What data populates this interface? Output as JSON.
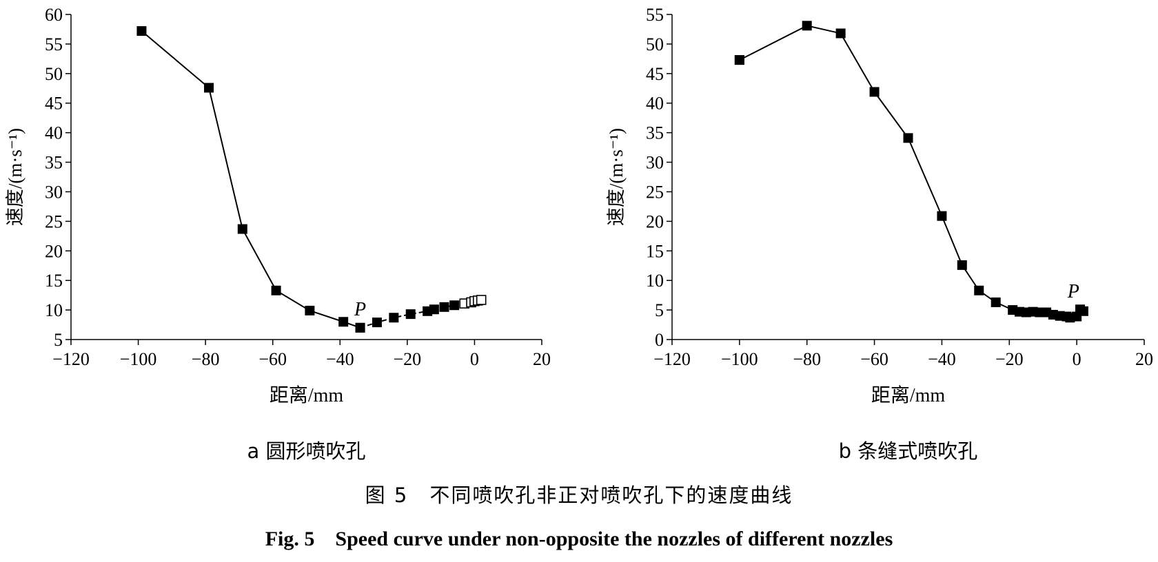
{
  "caption": {
    "cn": "图 5　不同喷吹孔非正对喷吹孔下的速度曲线",
    "en": "Fig. 5　Speed curve under non-opposite the nozzles of different nozzles"
  },
  "chart_data": [
    {
      "type": "line",
      "subtitle": "a 圆形喷吹孔",
      "xlabel": "距离/mm",
      "ylabel": "速度/(m·s⁻¹)",
      "xlim": [
        -120,
        20
      ],
      "ylim": [
        5,
        60
      ],
      "xticks": [
        -120,
        -100,
        -80,
        -60,
        -40,
        -20,
        0,
        20
      ],
      "xtick_labels": [
        "−120",
        "−100",
        "−80",
        "−60",
        "−40",
        "−20",
        "0",
        "20"
      ],
      "yticks": [
        5,
        10,
        15,
        20,
        25,
        30,
        35,
        40,
        45,
        50,
        55,
        60
      ],
      "grid": false,
      "annotation": {
        "text": "P",
        "x": -34,
        "y": 7
      },
      "series": [
        {
          "marker": "filled-square",
          "line": "solid",
          "x": [
            -99,
            -79,
            -69,
            -59,
            -49,
            -39,
            -34
          ],
          "y": [
            57.2,
            47.6,
            23.7,
            13.3,
            9.9,
            8.0,
            7.0
          ]
        },
        {
          "marker": "filled-square",
          "line": "dashed",
          "x": [
            -34,
            -29,
            -24,
            -19,
            -14,
            -12,
            -9,
            -6
          ],
          "y": [
            7.0,
            7.9,
            8.7,
            9.3,
            9.8,
            10.1,
            10.5,
            10.8
          ]
        },
        {
          "marker": "open-square",
          "line": "dashed",
          "x": [
            -3,
            -1,
            0,
            1,
            2
          ],
          "y": [
            11.1,
            11.3,
            11.5,
            11.6,
            11.7
          ]
        }
      ]
    },
    {
      "type": "line",
      "subtitle": "b 条缝式喷吹孔",
      "xlabel": "距离/mm",
      "ylabel": "速度/(m·s⁻¹)",
      "xlim": [
        -120,
        20
      ],
      "ylim": [
        0,
        55
      ],
      "xticks": [
        -120,
        -100,
        -80,
        -60,
        -40,
        -20,
        0,
        20
      ],
      "xtick_labels": [
        "−120",
        "−100",
        "−80",
        "−60",
        "−40",
        "−20",
        "0",
        "20"
      ],
      "yticks": [
        0,
        5,
        10,
        15,
        20,
        25,
        30,
        35,
        40,
        45,
        50,
        55
      ],
      "grid": false,
      "annotation": {
        "text": "P",
        "x": -1,
        "y": 5
      },
      "series": [
        {
          "marker": "filled-square",
          "line": "none",
          "x": [
            -100
          ],
          "y": [
            47.3
          ]
        },
        {
          "marker": "filled-square",
          "line": "solid",
          "x": [
            -100,
            -80,
            -70,
            -60,
            -50,
            -40,
            -34,
            -29,
            -24,
            -19,
            -17,
            -15,
            -13,
            -11,
            -9,
            -7,
            -5,
            -3,
            -2,
            0,
            1,
            2
          ],
          "y": [
            47.3,
            53.1,
            51.8,
            41.9,
            34.1,
            20.9,
            12.6,
            8.3,
            6.3,
            5.0,
            4.7,
            4.6,
            4.7,
            4.6,
            4.6,
            4.2,
            4.0,
            3.9,
            3.7,
            3.9,
            5.1,
            4.8
          ]
        }
      ]
    }
  ]
}
